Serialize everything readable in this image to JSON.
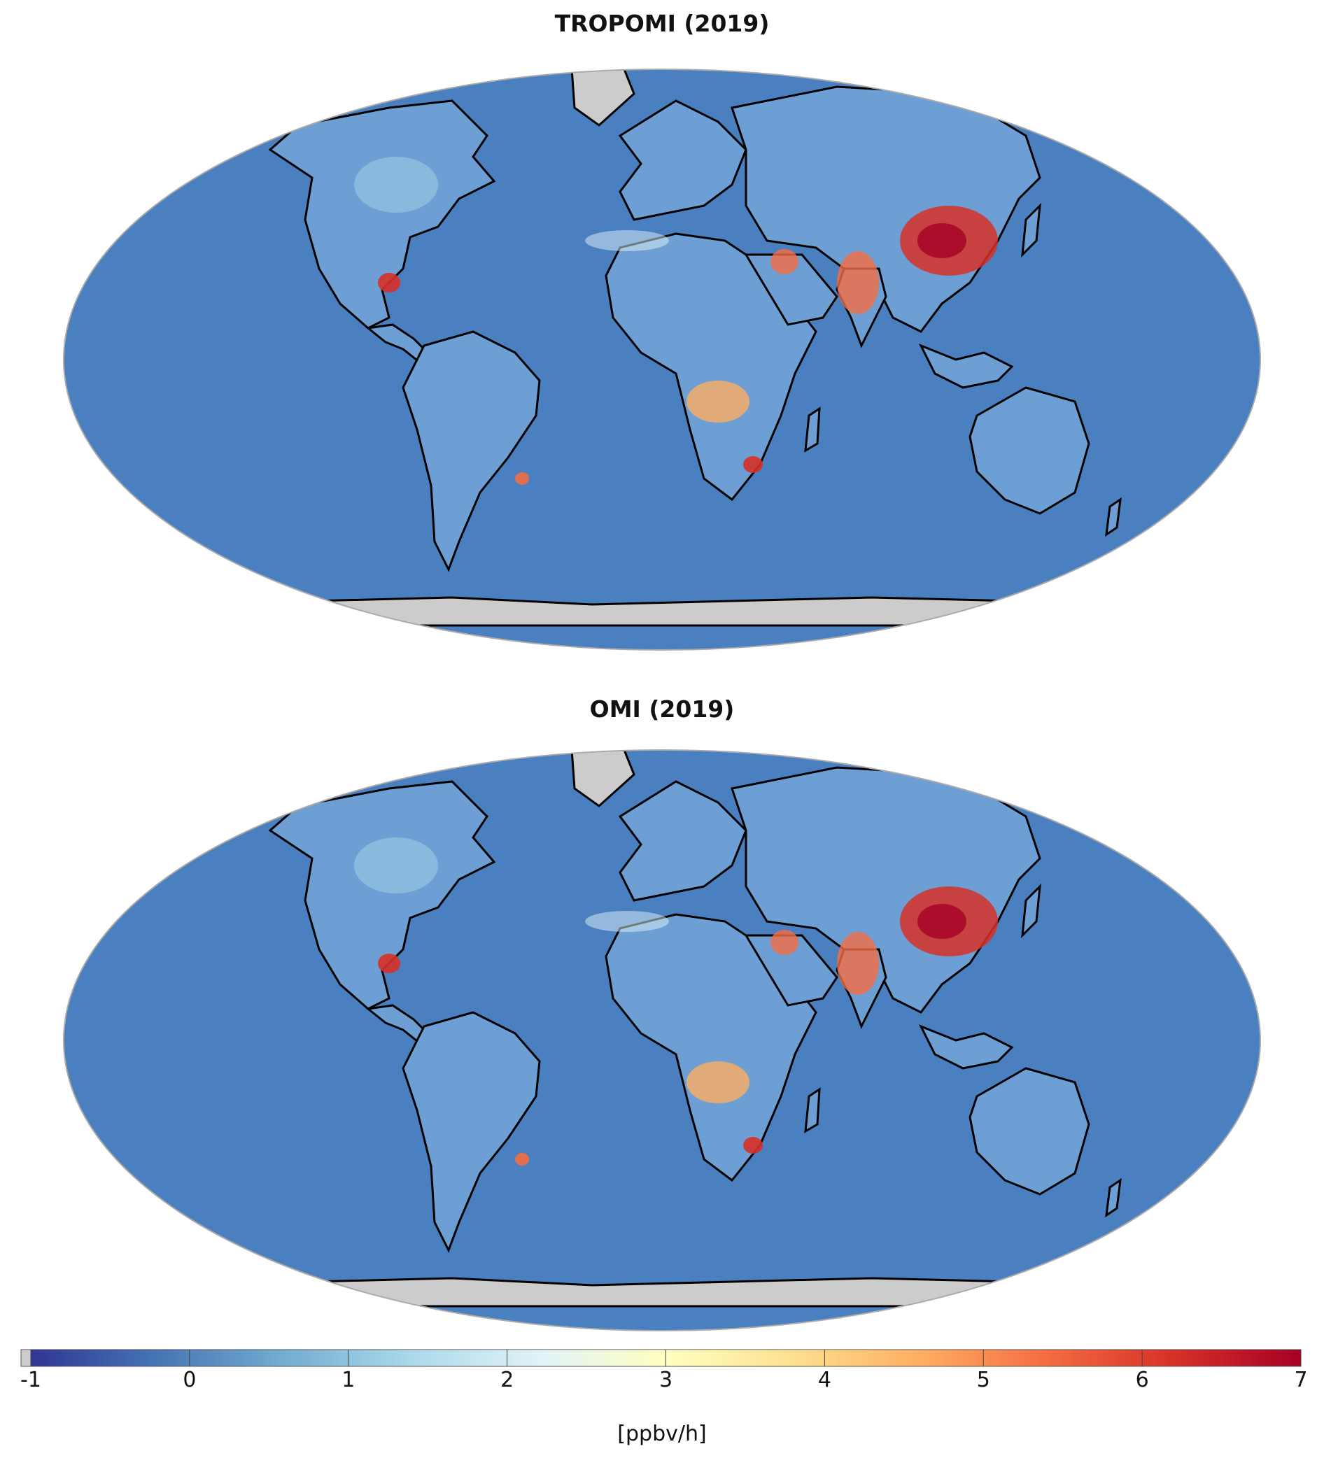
{
  "maps": [
    {
      "title": "TROPOMI (2019)"
    },
    {
      "title": "OMI (2019)"
    }
  ],
  "colorbar": {
    "ticks": [
      "-1",
      "0",
      "1",
      "2",
      "3",
      "4",
      "5",
      "6",
      "7"
    ],
    "unit": "[ppbv/h]",
    "min": -1,
    "max": 7,
    "colors": [
      "#313695",
      "#4575b4",
      "#74add1",
      "#abd9e9",
      "#e0f3f8",
      "#ffffbf",
      "#fee090",
      "#fdae61",
      "#f46d43",
      "#d73027",
      "#a50026"
    ],
    "nodata_color": "#cccccc"
  },
  "colors": {
    "ocean": "#4a7fc0",
    "land": "#6d9fd4",
    "hotspot": "#d73027",
    "coast": "#000000"
  }
}
